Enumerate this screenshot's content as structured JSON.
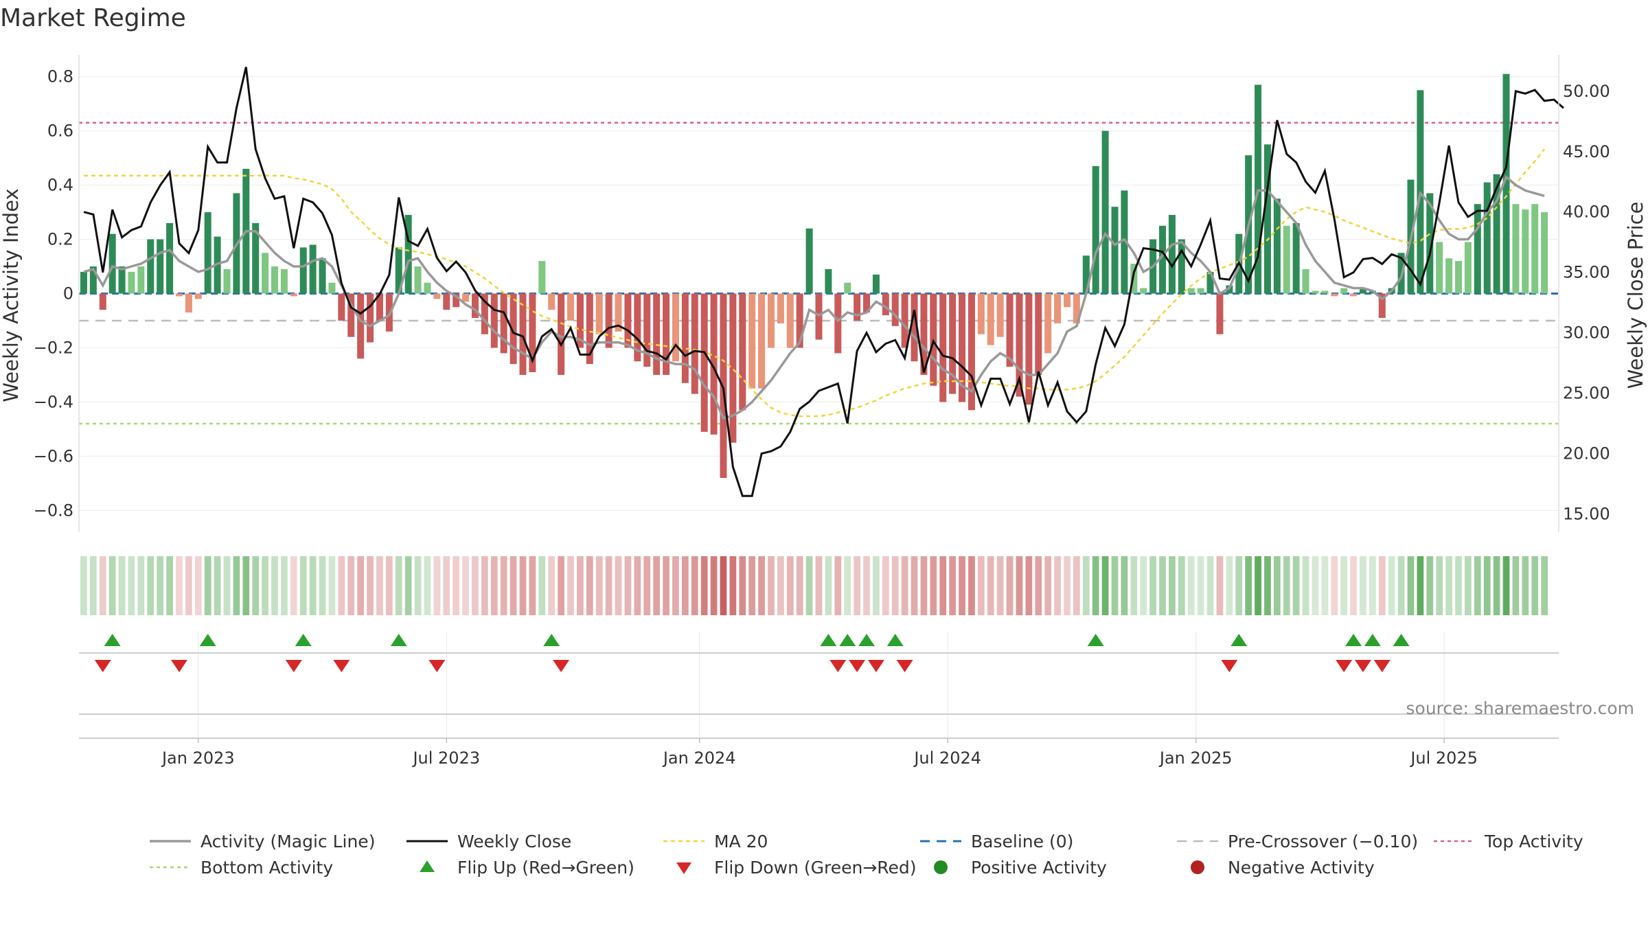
{
  "chart_data": {
    "type": "bar",
    "title": "Market Regime",
    "ylabel": "Weekly Activity Index",
    "y2label": "Weekly Close Price",
    "ylim": [
      -0.88,
      0.88
    ],
    "y2lim": [
      13.5,
      53
    ],
    "y_ticks": [
      {
        "v": 0.8,
        "label": "0.8"
      },
      {
        "v": 0.6,
        "label": "0.6"
      },
      {
        "v": 0.4,
        "label": "0.4"
      },
      {
        "v": 0.2,
        "label": "0.2"
      },
      {
        "v": 0,
        "label": "0"
      },
      {
        "v": -0.2,
        "label": "−0.2"
      },
      {
        "v": -0.4,
        "label": "−0.4"
      },
      {
        "v": -0.6,
        "label": "−0.6"
      },
      {
        "v": -0.8,
        "label": "−0.8"
      }
    ],
    "y2_ticks": [
      {
        "v": 50,
        "label": "50.00"
      },
      {
        "v": 45,
        "label": "45.00"
      },
      {
        "v": 40,
        "label": "40.00"
      },
      {
        "v": 35,
        "label": "35.00"
      },
      {
        "v": 30,
        "label": "30.00"
      },
      {
        "v": 25,
        "label": "25.00"
      },
      {
        "v": 20,
        "label": "20.00"
      },
      {
        "v": 15,
        "label": "15.00"
      }
    ],
    "x_ticks": [
      {
        "week": 12,
        "label": "Jan 2023"
      },
      {
        "week": 38,
        "label": "Jul 2023"
      },
      {
        "week": 64.5,
        "label": "Jan 2024"
      },
      {
        "week": 90.5,
        "label": "Jul 2024"
      },
      {
        "week": 116.5,
        "label": "Jan 2025"
      },
      {
        "week": 142.5,
        "label": "Jul 2025"
      }
    ],
    "weeks": 155,
    "activity": [
      0.08,
      0.1,
      -0.06,
      0.22,
      0.1,
      0.08,
      0.1,
      0.2,
      0.2,
      0.26,
      -0.01,
      -0.07,
      -0.02,
      0.3,
      0.21,
      0.09,
      0.37,
      0.46,
      0.26,
      0.15,
      0.1,
      0.09,
      -0.01,
      0.17,
      0.18,
      0.13,
      0.04,
      -0.1,
      -0.16,
      -0.24,
      -0.18,
      -0.1,
      -0.14,
      0.17,
      0.29,
      0.1,
      0.04,
      -0.02,
      -0.06,
      -0.05,
      -0.03,
      -0.09,
      -0.15,
      -0.2,
      -0.22,
      -0.26,
      -0.3,
      -0.29,
      0.12,
      -0.06,
      -0.3,
      -0.1,
      -0.2,
      -0.26,
      -0.15,
      -0.2,
      -0.14,
      -0.2,
      -0.25,
      -0.27,
      -0.3,
      -0.3,
      -0.25,
      -0.33,
      -0.37,
      -0.51,
      -0.52,
      -0.68,
      -0.55,
      -0.43,
      -0.35,
      -0.35,
      -0.2,
      -0.11,
      -0.2,
      -0.2,
      0.24,
      -0.17,
      0.09,
      -0.22,
      0.04,
      -0.1,
      -0.07,
      0.07,
      -0.08,
      -0.12,
      -0.2,
      -0.25,
      -0.3,
      -0.34,
      -0.4,
      -0.37,
      -0.4,
      -0.43,
      -0.15,
      -0.19,
      -0.16,
      -0.27,
      -0.38,
      -0.41,
      -0.3,
      -0.22,
      -0.11,
      -0.05,
      -0.11,
      0.14,
      0.47,
      0.6,
      0.32,
      0.38,
      0.11,
      0.02,
      0.2,
      0.25,
      0.29,
      0.2,
      0.02,
      0.02,
      0.08,
      -0.15,
      0.03,
      0.22,
      0.51,
      0.77,
      0.55,
      0.35,
      0.25,
      0.26,
      0.09,
      0.01,
      0.01,
      -0.01,
      0.02,
      -0.01,
      0.02,
      0.01,
      -0.09,
      0.02,
      0.15,
      0.42,
      0.75,
      0.37,
      0.19,
      0.13,
      0.12,
      0.19,
      0.33,
      0.41,
      0.44,
      0.81,
      0.33,
      0.31,
      0.33,
      0.3
    ],
    "activity_ma": [
      0.08,
      0.09,
      0.03,
      0.1,
      0.09,
      0.1,
      0.11,
      0.13,
      0.15,
      0.16,
      0.12,
      0.1,
      0.08,
      0.09,
      0.11,
      0.12,
      0.18,
      0.23,
      0.23,
      0.19,
      0.15,
      0.12,
      0.1,
      0.1,
      0.12,
      0.13,
      0.1,
      0.03,
      -0.04,
      -0.1,
      -0.12,
      -0.1,
      -0.08,
      0.0,
      0.12,
      0.13,
      0.08,
      0.04,
      0.01,
      -0.01,
      -0.04,
      -0.06,
      -0.1,
      -0.14,
      -0.17,
      -0.2,
      -0.22,
      -0.24,
      -0.18,
      -0.14,
      -0.16,
      -0.16,
      -0.17,
      -0.19,
      -0.18,
      -0.18,
      -0.18,
      -0.19,
      -0.21,
      -0.22,
      -0.24,
      -0.25,
      -0.26,
      -0.26,
      -0.28,
      -0.34,
      -0.38,
      -0.46,
      -0.45,
      -0.43,
      -0.4,
      -0.36,
      -0.32,
      -0.27,
      -0.22,
      -0.18,
      -0.06,
      -0.08,
      -0.06,
      -0.1,
      -0.07,
      -0.08,
      -0.07,
      -0.03,
      -0.05,
      -0.08,
      -0.12,
      -0.16,
      -0.2,
      -0.24,
      -0.28,
      -0.3,
      -0.34,
      -0.36,
      -0.3,
      -0.25,
      -0.22,
      -0.24,
      -0.28,
      -0.3,
      -0.3,
      -0.26,
      -0.22,
      -0.14,
      -0.12,
      0.0,
      0.15,
      0.22,
      0.18,
      0.2,
      0.15,
      0.08,
      0.1,
      0.14,
      0.18,
      0.19,
      0.15,
      0.12,
      0.08,
      0.0,
      0.02,
      0.1,
      0.25,
      0.38,
      0.38,
      0.34,
      0.3,
      0.26,
      0.18,
      0.12,
      0.08,
      0.04,
      0.03,
      0.02,
      0.02,
      0.01,
      -0.02,
      0.01,
      0.06,
      0.2,
      0.37,
      0.33,
      0.27,
      0.22,
      0.2,
      0.2,
      0.24,
      0.3,
      0.34,
      0.43,
      0.4,
      0.38,
      0.37,
      0.36
    ],
    "close": [
      40.0,
      39.8,
      35.0,
      40.2,
      37.9,
      38.5,
      38.8,
      40.8,
      42.2,
      43.3,
      37.4,
      36.6,
      38.5,
      45.4,
      44.1,
      44.1,
      48.6,
      52.0,
      45.2,
      42.8,
      41.1,
      41.3,
      37.0,
      41.1,
      40.8,
      39.9,
      38.1,
      34.1,
      32.1,
      31.6,
      32.2,
      33.2,
      34.8,
      41.2,
      37.6,
      37.2,
      38.6,
      36.2,
      35.1,
      35.9,
      35.0,
      33.5,
      32.6,
      31.9,
      31.7,
      30.0,
      29.7,
      27.7,
      29.7,
      30.3,
      29.0,
      30.4,
      28.2,
      28.2,
      29.7,
      30.4,
      30.6,
      30.2,
      29.5,
      28.5,
      28.3,
      27.8,
      29.0,
      28.1,
      28.5,
      28.4,
      27.1,
      25.4,
      18.9,
      16.5,
      16.5,
      20.0,
      20.2,
      20.6,
      21.8,
      23.7,
      24.3,
      25.2,
      25.5,
      25.8,
      22.5,
      28.5,
      30.0,
      28.4,
      29.1,
      29.4,
      27.9,
      31.9,
      26.7,
      29.3,
      28.1,
      27.9,
      27.2,
      26.4,
      24.0,
      26.2,
      26.2,
      24.1,
      26.2,
      22.6,
      26.8,
      24.0,
      25.9,
      23.5,
      22.6,
      23.5,
      27.4,
      30.4,
      28.9,
      30.7,
      35.0,
      37.0,
      36.9,
      36.7,
      35.5,
      36.8,
      35.5,
      37.3,
      39.3,
      34.5,
      34.4,
      35.8,
      34.3,
      36.3,
      42.0,
      47.6,
      44.8,
      44.1,
      42.5,
      41.6,
      43.4,
      39.4,
      34.6,
      35.0,
      36.1,
      36.2,
      35.7,
      36.5,
      36.2,
      35.2,
      34.0,
      36.5,
      40.8,
      45.5,
      40.8,
      39.6,
      40.1,
      40.1,
      42.0,
      43.7,
      50.0,
      49.8,
      50.1,
      49.2,
      49.3,
      48.6
    ],
    "ma20": [
      43.0,
      43.0,
      43.0,
      43.0,
      43.0,
      43.0,
      43.0,
      43.0,
      43.0,
      43.0,
      43.0,
      43.0,
      43.0,
      43.0,
      43.0,
      43.0,
      43.0,
      43.0,
      43.0,
      43.0,
      43.0,
      43.0,
      42.8,
      42.7,
      42.5,
      42.3,
      41.9,
      41.1,
      40.0,
      39.3,
      38.5,
      37.8,
      37.3,
      37.0,
      36.8,
      36.7,
      36.5,
      36.3,
      36.1,
      35.8,
      35.5,
      35.0,
      34.5,
      33.9,
      33.3,
      32.8,
      32.3,
      31.8,
      31.4,
      31.1,
      30.8,
      30.5,
      30.3,
      30.1,
      30.0,
      29.8,
      29.6,
      29.4,
      29.2,
      29.1,
      29.0,
      28.9,
      28.8,
      28.7,
      28.6,
      28.4,
      28.1,
      27.7,
      27.0,
      26.2,
      25.3,
      24.5,
      23.8,
      23.4,
      23.2,
      23.1,
      23.1,
      23.1,
      23.2,
      23.4,
      23.6,
      23.8,
      24.1,
      24.4,
      24.8,
      25.1,
      25.4,
      25.6,
      25.8,
      25.9,
      26.0,
      26.0,
      26.0,
      26.0,
      25.9,
      25.8,
      25.7,
      25.6,
      25.6,
      25.4,
      25.4,
      25.3,
      25.3,
      25.3,
      25.4,
      25.6,
      26.0,
      26.6,
      27.3,
      28.0,
      28.9,
      29.8,
      30.7,
      31.6,
      32.4,
      33.2,
      33.9,
      34.5,
      35.0,
      35.3,
      35.6,
      35.9,
      36.3,
      37.0,
      37.7,
      38.6,
      39.4,
      40.0,
      40.4,
      40.2,
      40.0,
      39.7,
      39.3,
      39.0,
      38.7,
      38.4,
      38.1,
      37.8,
      37.6,
      37.4,
      37.6,
      38.2,
      38.5,
      38.6,
      38.6,
      38.7,
      39.0,
      39.5,
      40.4,
      41.3,
      42.3,
      43.3,
      44.2,
      45.2
    ],
    "top_activity": 0.63,
    "bottom_activity": -0.48,
    "pre_crossover": -0.1,
    "flip_up_weeks": [
      3,
      13,
      23,
      33,
      49,
      78,
      80,
      82,
      85,
      106,
      121,
      133,
      135,
      138
    ],
    "flip_down_weeks": [
      2,
      10,
      22,
      27,
      37,
      50,
      79,
      81,
      83,
      86,
      120,
      132,
      134,
      136
    ],
    "colors": {
      "pos_strong": "#2e8b57",
      "pos_weak": "#7fc783",
      "neg_strong": "#c85a5a",
      "neg_weak": "#e8957a",
      "close": "#111111",
      "activity_line": "#999999",
      "ma20": "#f0d43a",
      "baseline": "#2a6fb0",
      "pre_crossover": "#bbbbbb",
      "top_activity": "#e0607e",
      "bottom_activity": "#a5d96a",
      "flip_up": "#2ca02c",
      "flip_down": "#d62728",
      "positive_dot": "#228b22",
      "negative_dot": "#b22222"
    }
  },
  "source": "source: sharemaestro.com",
  "legend": [
    {
      "key": "magic",
      "label": "Activity (Magic Line)"
    },
    {
      "key": "close",
      "label": "Weekly Close"
    },
    {
      "key": "ma20",
      "label": "MA 20"
    },
    {
      "key": "baseline",
      "label": "Baseline (0)"
    },
    {
      "key": "precross",
      "label": "Pre-Crossover (−0.10)"
    },
    {
      "key": "top",
      "label": "Top Activity"
    },
    {
      "key": "bottom",
      "label": "Bottom Activity"
    },
    {
      "key": "flipup",
      "label": "Flip Up (Red→Green)"
    },
    {
      "key": "flipdown",
      "label": "Flip Down (Green→Red)"
    },
    {
      "key": "posdot",
      "label": "Positive Activity"
    },
    {
      "key": "negdot",
      "label": "Negative Activity"
    }
  ]
}
